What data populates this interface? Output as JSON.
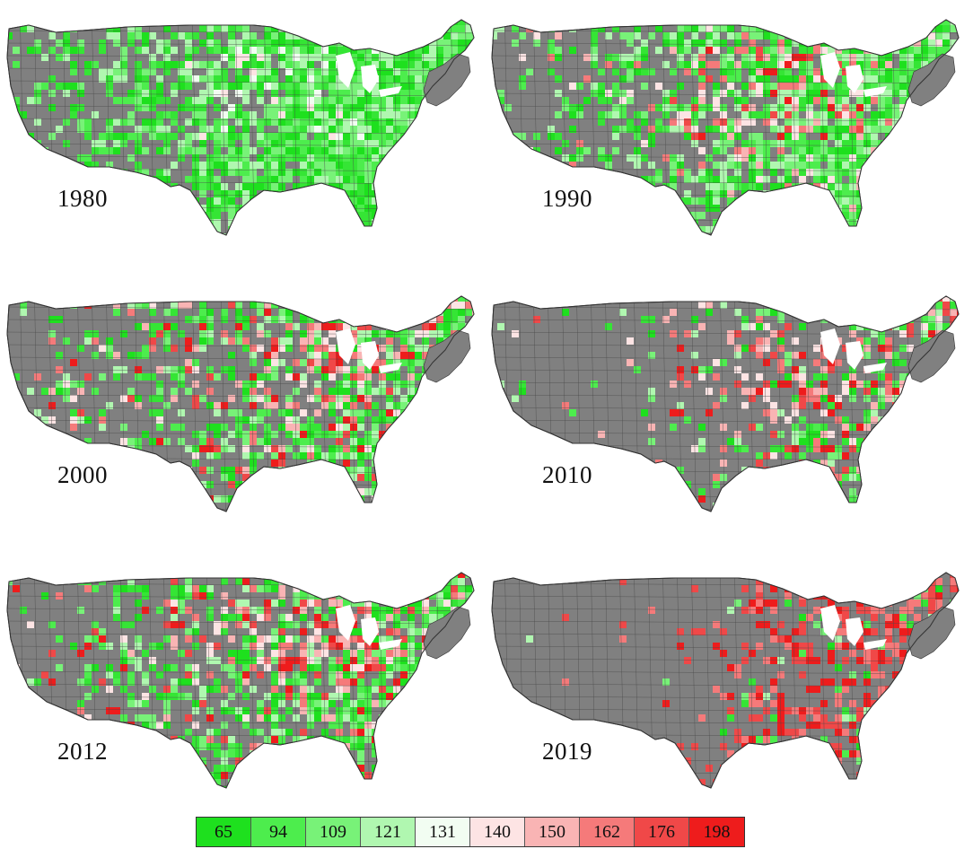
{
  "panels": [
    {
      "year": "1980",
      "scheme": "green"
    },
    {
      "year": "1990",
      "scheme": "mixed-green"
    },
    {
      "year": "2000",
      "scheme": "mixed"
    },
    {
      "year": "2010",
      "scheme": "mixed-red"
    },
    {
      "year": "2012",
      "scheme": "mixed"
    },
    {
      "year": "2019",
      "scheme": "red"
    }
  ],
  "legend": {
    "bins": [
      {
        "label": "65",
        "color": "#1ee01e"
      },
      {
        "label": "94",
        "color": "#4ded4d"
      },
      {
        "label": "109",
        "color": "#78f278"
      },
      {
        "label": "121",
        "color": "#b0f7b0"
      },
      {
        "label": "131",
        "color": "#f2fdf2"
      },
      {
        "label": "140",
        "color": "#fde4e4"
      },
      {
        "label": "150",
        "color": "#f9b4b4"
      },
      {
        "label": "162",
        "color": "#f57a7a"
      },
      {
        "label": "176",
        "color": "#f04848"
      },
      {
        "label": "198",
        "color": "#ee1c1c"
      }
    ]
  },
  "colors": {
    "base_gray": "#808080",
    "county_border": "#555555"
  }
}
